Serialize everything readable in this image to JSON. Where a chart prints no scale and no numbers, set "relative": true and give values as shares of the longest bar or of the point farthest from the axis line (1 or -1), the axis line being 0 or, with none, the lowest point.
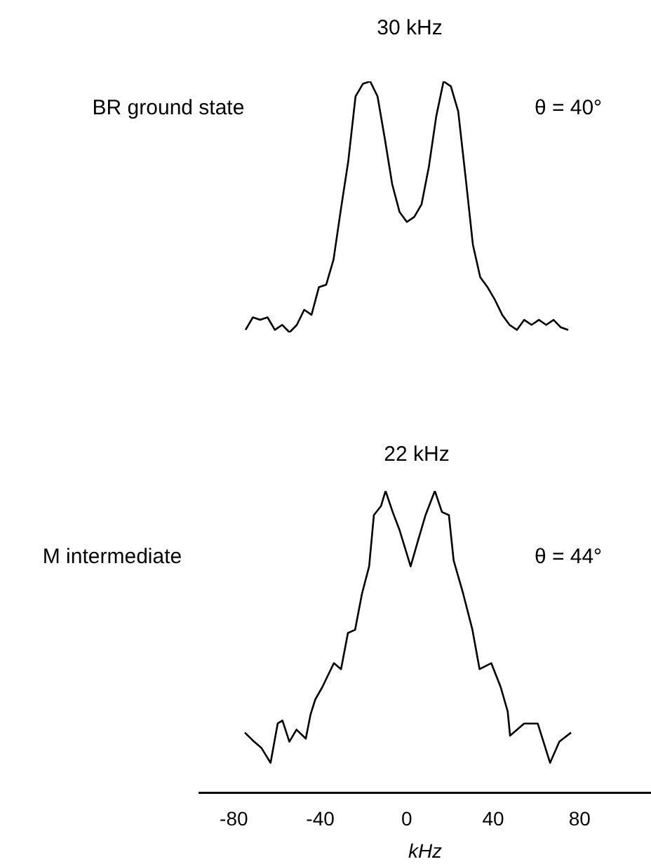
{
  "chart_data": [
    {
      "type": "line",
      "relative": true,
      "color": "#000000",
      "marker": "none",
      "tick_labels": false,
      "categories": [
        null,
        null,
        null,
        null,
        null,
        null,
        null,
        null,
        null,
        null,
        null,
        null,
        null,
        null,
        null,
        null,
        null,
        null,
        null,
        null,
        null,
        null,
        null,
        null,
        null,
        null,
        null,
        null,
        null,
        null,
        null,
        null,
        null,
        null,
        null,
        null,
        null,
        null,
        null,
        null,
        null,
        null,
        null,
        null,
        null
      ],
      "values": [
        0.01,
        0.06,
        0.05,
        0.06,
        0.01,
        0.03,
        0,
        0.03,
        0.09,
        0.07,
        0.18,
        0.19,
        0.29,
        0.49,
        0.68,
        0.94,
        0.99,
        1,
        0.94,
        0.77,
        0.59,
        0.48,
        0.44,
        0.46,
        0.51,
        0.66,
        0.86,
        1,
        0.98,
        0.88,
        0.62,
        0.35,
        0.22,
        0.18,
        0.13,
        0.07,
        0.03,
        0.01,
        0.05,
        0.03,
        0.05,
        0.03,
        0.05,
        0.02,
        0.01
      ],
      "annotations": [
        "30 kHz",
        "BR ground state",
        "θ = 40°"
      ]
    },
    {
      "type": "line",
      "relative": true,
      "color": "#000000",
      "marker": "none",
      "xlim": [
        -96,
        113
      ],
      "xticks": [
        -80,
        -40,
        0,
        40,
        80
      ],
      "xlabel": "kHz",
      "x": [
        -74.9,
        -70.6,
        -67.3,
        -63.0,
        -59.7,
        -57.5,
        -54.3,
        -51.0,
        -46.7,
        -44.5,
        -42.3,
        -39.1,
        -33.7,
        -30.4,
        -27.2,
        -23.9,
        -20.7,
        -17.4,
        -15.2,
        -11.9,
        -9.8,
        -6.5,
        -3.3,
        1.8,
        5.4,
        8.7,
        13.0,
        16.3,
        19.5,
        21.7,
        26.1,
        30.4,
        33.7,
        39.1,
        43.5,
        46.7,
        47.8,
        54.3,
        60.6,
        66.3,
        70.6,
        76.0
      ],
      "values": [
        0.2,
        0.17,
        0.15,
        0.1,
        0.23,
        0.24,
        0.17,
        0.21,
        0.18,
        0.26,
        0.31,
        0.35,
        0.43,
        0.41,
        0.53,
        0.54,
        0.66,
        0.75,
        0.92,
        0.95,
        1,
        0.93,
        0.87,
        0.75,
        0.84,
        0.92,
        1,
        0.93,
        0.92,
        0.77,
        0.66,
        0.54,
        0.41,
        0.43,
        0.35,
        0.27,
        0.19,
        0.23,
        0.23,
        0.1,
        0.17,
        0.2
      ],
      "annotations": [
        "22 kHz",
        "M intermediate",
        "θ = 44°"
      ]
    }
  ]
}
